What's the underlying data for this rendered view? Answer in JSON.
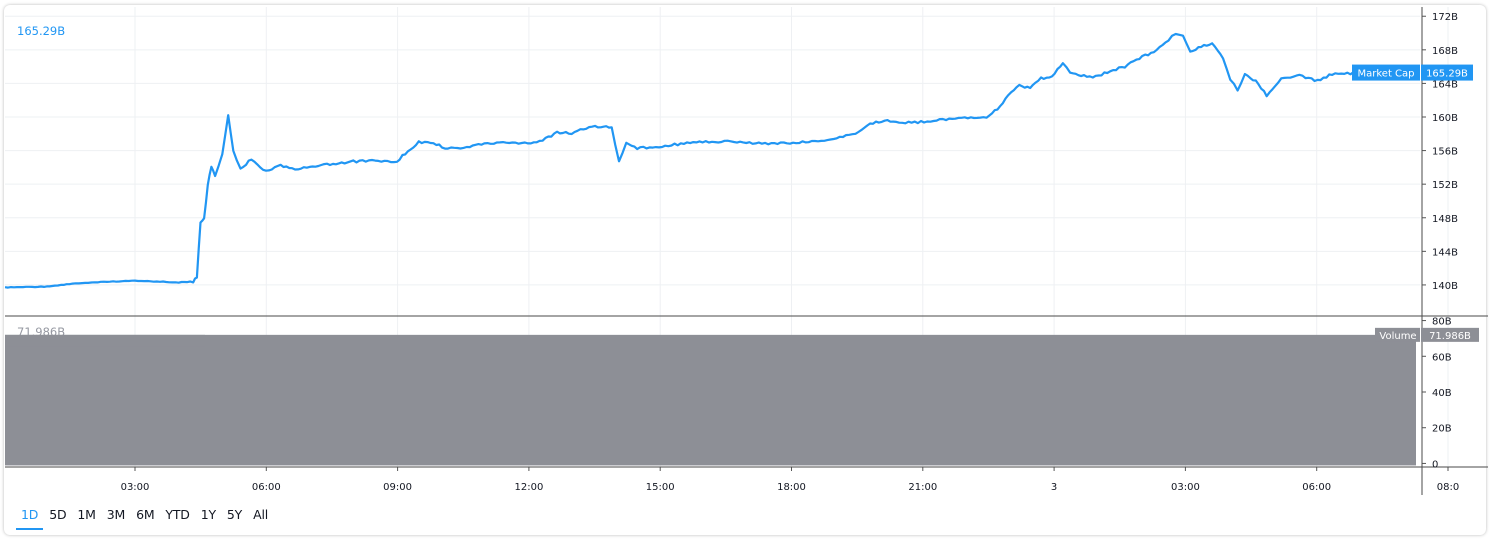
{
  "chart_data": {
    "type": "line",
    "legend_value": "165.29B",
    "price": {
      "series_name": "Market Cap",
      "last_value_label": "165.29B",
      "last_value": 165.29,
      "unit": "B",
      "ylim": [
        136.3,
        173.1
      ],
      "yticks": [
        140,
        144,
        148,
        152,
        156,
        160,
        164,
        168,
        172
      ],
      "ytick_labels": [
        "140B",
        "144B",
        "148B",
        "152B",
        "156B",
        "160B",
        "164B",
        "168B",
        "172B"
      ],
      "points": [
        [
          "00:30",
          139.7
        ],
        [
          "00:55",
          139.8
        ],
        [
          "01:10",
          139.9
        ],
        [
          "01:30",
          140.1
        ],
        [
          "02:00",
          140.3
        ],
        [
          "02:30",
          140.4
        ],
        [
          "03:00",
          140.5
        ],
        [
          "03:30",
          140.4
        ],
        [
          "04:00",
          140.3
        ],
        [
          "04:20",
          140.4
        ],
        [
          "04:25",
          141.0
        ],
        [
          "04:30",
          147.5
        ],
        [
          "04:35",
          148.0
        ],
        [
          "04:40",
          152.0
        ],
        [
          "04:45",
          154.0
        ],
        [
          "04:50",
          153.0
        ],
        [
          "05:00",
          155.5
        ],
        [
          "05:08",
          160.3
        ],
        [
          "05:15",
          156.0
        ],
        [
          "05:25",
          153.8
        ],
        [
          "05:40",
          155.0
        ],
        [
          "06:00",
          153.5
        ],
        [
          "06:20",
          154.2
        ],
        [
          "06:40",
          153.8
        ],
        [
          "07:00",
          154.0
        ],
        [
          "07:20",
          154.3
        ],
        [
          "07:40",
          154.5
        ],
        [
          "08:00",
          154.7
        ],
        [
          "08:30",
          154.8
        ],
        [
          "09:00",
          154.7
        ],
        [
          "09:15",
          156.0
        ],
        [
          "09:30",
          157.0
        ],
        [
          "09:50",
          156.9
        ],
        [
          "10:10",
          156.2
        ],
        [
          "10:40",
          156.5
        ],
        [
          "11:00",
          156.8
        ],
        [
          "11:30",
          157.0
        ],
        [
          "12:00",
          156.9
        ],
        [
          "12:20",
          157.2
        ],
        [
          "12:40",
          158.2
        ],
        [
          "13:00",
          158.0
        ],
        [
          "13:20",
          158.7
        ],
        [
          "13:40",
          158.9
        ],
        [
          "13:55",
          158.7
        ],
        [
          "14:05",
          154.6
        ],
        [
          "14:15",
          156.8
        ],
        [
          "14:30",
          156.3
        ],
        [
          "15:00",
          156.5
        ],
        [
          "15:30",
          156.8
        ],
        [
          "16:00",
          157.0
        ],
        [
          "16:30",
          157.1
        ],
        [
          "17:00",
          156.9
        ],
        [
          "17:30",
          156.8
        ],
        [
          "18:00",
          156.9
        ],
        [
          "18:30",
          157.1
        ],
        [
          "19:00",
          157.4
        ],
        [
          "19:30",
          158.0
        ],
        [
          "19:50",
          159.2
        ],
        [
          "20:10",
          159.6
        ],
        [
          "20:30",
          159.3
        ],
        [
          "21:00",
          159.4
        ],
        [
          "21:30",
          159.7
        ],
        [
          "22:00",
          159.9
        ],
        [
          "22:30",
          160.0
        ],
        [
          "22:45",
          161.0
        ],
        [
          "23:00",
          162.5
        ],
        [
          "23:15",
          163.8
        ],
        [
          "23:30",
          163.4
        ],
        [
          "23:45",
          164.6
        ],
        [
          "00:00",
          164.8
        ],
        [
          "00:15",
          166.4
        ],
        [
          "00:25",
          165.2
        ],
        [
          "00:40",
          164.9
        ],
        [
          "01:00",
          164.8
        ],
        [
          "01:20",
          165.5
        ],
        [
          "01:40",
          166.0
        ],
        [
          "02:00",
          167.0
        ],
        [
          "02:20",
          167.8
        ],
        [
          "02:40",
          169.2
        ],
        [
          "02:50",
          170.0
        ],
        [
          "03:00",
          169.7
        ],
        [
          "03:10",
          167.8
        ],
        [
          "03:25",
          168.4
        ],
        [
          "03:40",
          168.8
        ],
        [
          "03:55",
          167.0
        ],
        [
          "04:05",
          164.5
        ],
        [
          "04:15",
          163.2
        ],
        [
          "04:25",
          165.0
        ],
        [
          "04:40",
          164.3
        ],
        [
          "04:55",
          162.6
        ],
        [
          "05:15",
          164.6
        ],
        [
          "05:40",
          164.9
        ],
        [
          "06:05",
          164.3
        ],
        [
          "06:25",
          165.1
        ],
        [
          "06:50",
          165.2
        ],
        [
          "07:10",
          165.6
        ],
        [
          "07:30",
          165.3
        ]
      ]
    },
    "volume": {
      "series_name": "Volume",
      "legend_value": "71.986B",
      "last_value_label": "71.986B",
      "ylim": [
        -2,
        82
      ],
      "yticks": [
        0,
        20,
        40,
        60,
        80
      ],
      "ytick_labels": [
        "0",
        "20B",
        "40B",
        "60B",
        "80B"
      ],
      "bar_value": 72.0,
      "bar_start": "00:00",
      "bar_end": "08:00",
      "bar_color": "#8d8f96"
    },
    "x_tick_labels": [
      "03:00",
      "06:00",
      "09:00",
      "12:00",
      "15:00",
      "18:00",
      "21:00",
      "3",
      "03:00",
      "06:00",
      "08:0"
    ],
    "line_color": "#2196f3",
    "grid": true
  },
  "range_buttons": [
    {
      "label": "1D",
      "active": true
    },
    {
      "label": "5D",
      "active": false
    },
    {
      "label": "1M",
      "active": false
    },
    {
      "label": "3M",
      "active": false
    },
    {
      "label": "6M",
      "active": false
    },
    {
      "label": "YTD",
      "active": false
    },
    {
      "label": "1Y",
      "active": false
    },
    {
      "label": "5Y",
      "active": false
    },
    {
      "label": "All",
      "active": false
    }
  ]
}
